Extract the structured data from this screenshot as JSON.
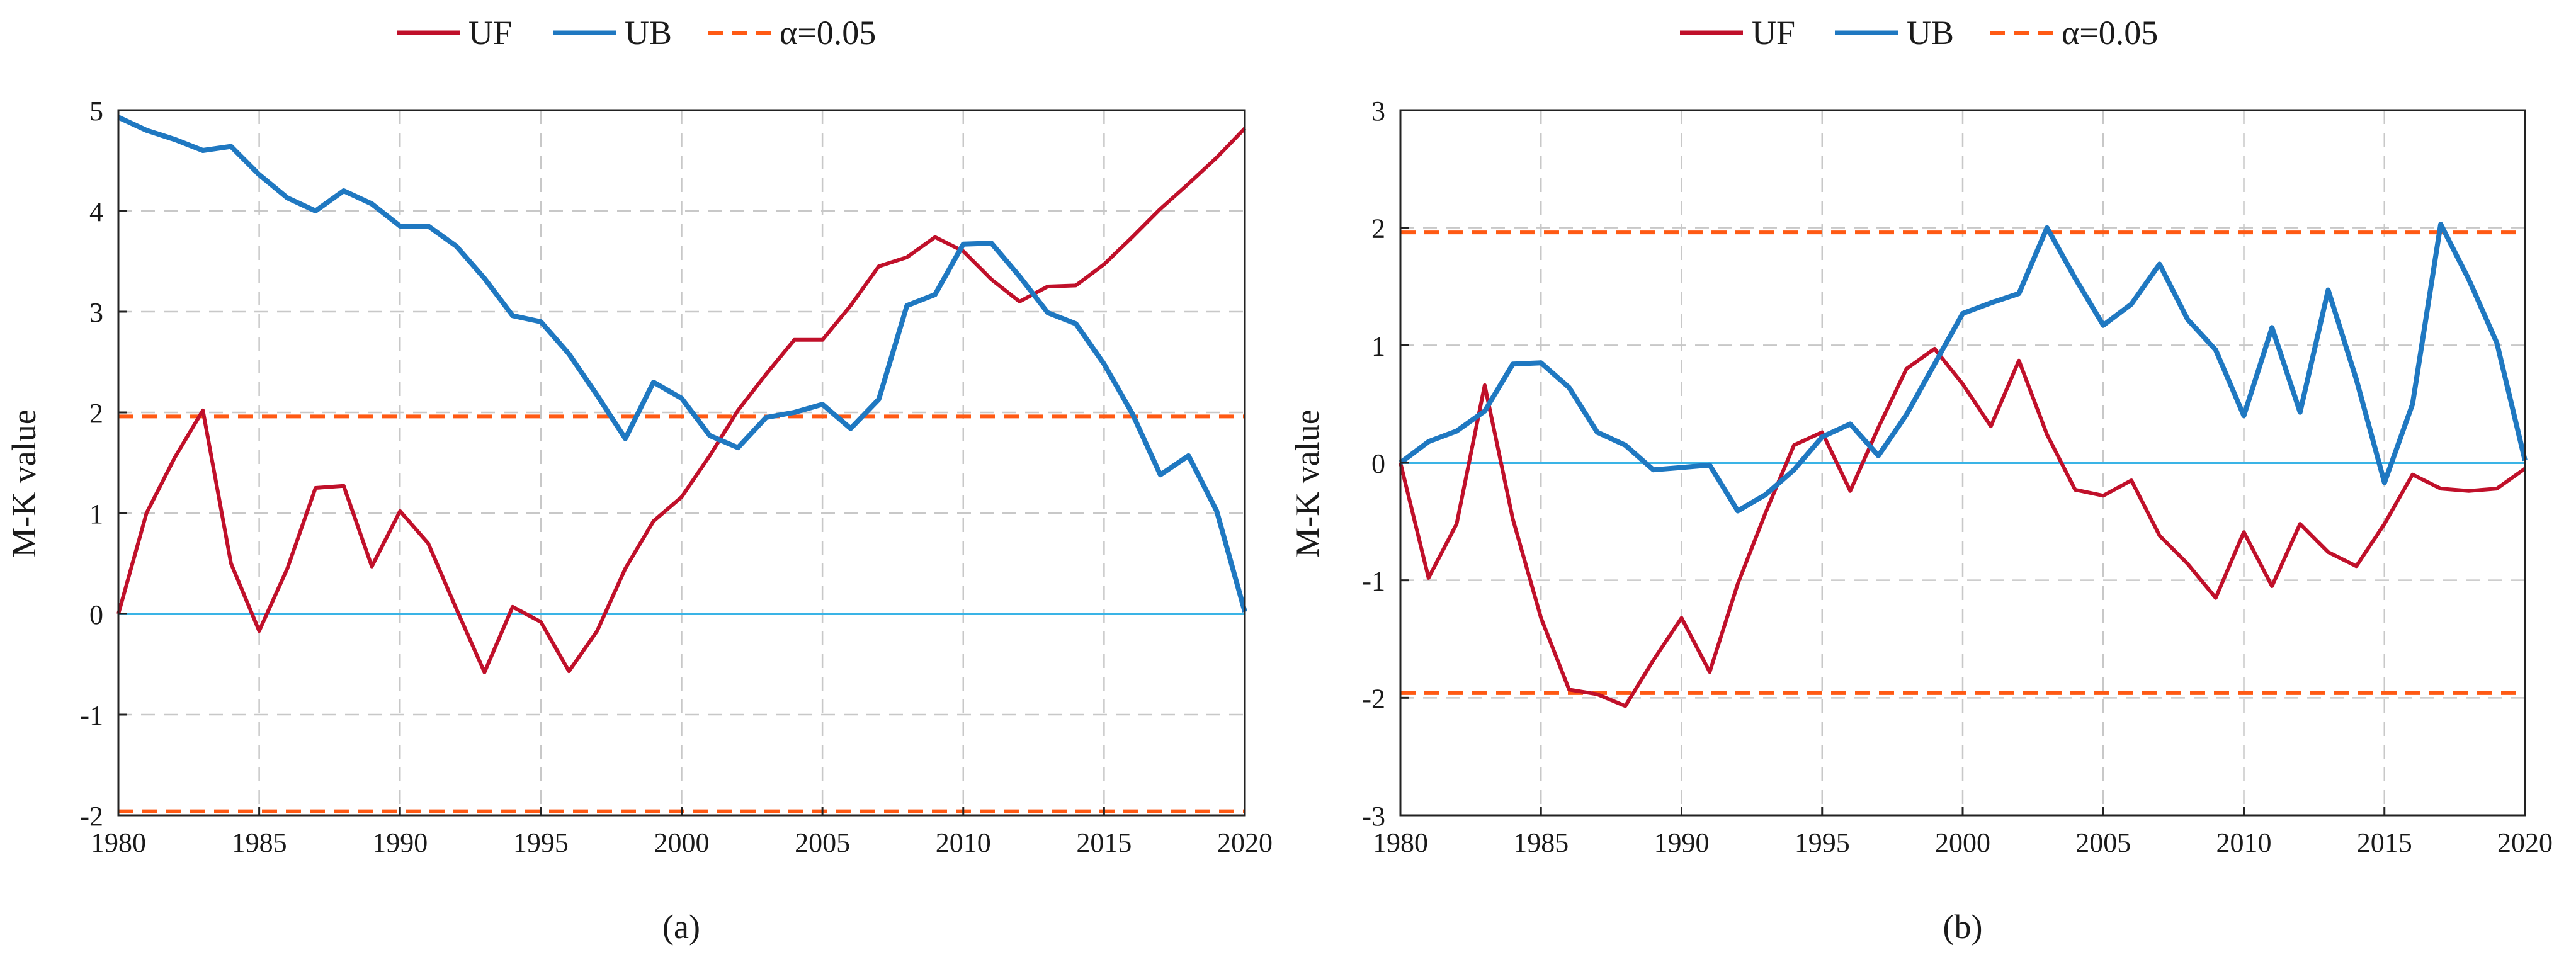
{
  "legend": {
    "uf": "UF",
    "ub": "UB",
    "alpha": "α=0.05"
  },
  "colors": {
    "uf": "#c0102a",
    "ub": "#1f78c1",
    "alpha": "#ff5a14",
    "zero": "#3ab4e6"
  },
  "chart_data": [
    {
      "type": "line",
      "caption": "(a)",
      "ylabel": "M-K value",
      "xlim": [
        1980,
        2020
      ],
      "ylim": [
        -2,
        5
      ],
      "xticks": [
        1980,
        1985,
        1990,
        1995,
        2000,
        2005,
        2010,
        2015,
        2020
      ],
      "yticks": [
        -2,
        -1,
        0,
        1,
        2,
        3,
        4,
        5
      ],
      "ytick_labels": [
        "-2",
        "-1",
        "0",
        "1",
        "2",
        "3",
        "4",
        "5"
      ],
      "x": [
        1980,
        1981,
        1982,
        1983,
        1984,
        1985,
        1986,
        1987,
        1988,
        1989,
        1990,
        1991,
        1992,
        1993,
        1994,
        1995,
        1996,
        1997,
        1998,
        1999,
        2000,
        2001,
        2002,
        2003,
        2004,
        2005,
        2006,
        2007,
        2008,
        2009,
        2010,
        2011,
        2012,
        2013,
        2014,
        2015,
        2016,
        2017,
        2018,
        2019,
        2020
      ],
      "series": [
        {
          "name": "UF",
          "values": [
            0,
            1.0,
            1.55,
            2.02,
            0.5,
            -0.17,
            0.45,
            1.25,
            1.27,
            0.47,
            1.02,
            0.7,
            0.05,
            -0.58,
            0.07,
            -0.08,
            -0.57,
            -0.17,
            0.45,
            0.92,
            1.16,
            1.57,
            2.02,
            2.38,
            2.72,
            2.72,
            3.06,
            3.45,
            3.54,
            3.74,
            3.6,
            3.32,
            3.1,
            3.25,
            3.26,
            3.47,
            3.74,
            4.02,
            4.27,
            4.53,
            4.82
          ]
        },
        {
          "name": "UB",
          "values": [
            4.93,
            4.8,
            4.71,
            4.6,
            4.64,
            4.36,
            4.13,
            4.0,
            4.2,
            4.07,
            3.85,
            3.85,
            3.65,
            3.33,
            2.96,
            2.9,
            2.58,
            2.17,
            1.74,
            2.3,
            2.14,
            1.77,
            1.65,
            1.95,
            2.0,
            2.08,
            1.84,
            2.13,
            3.06,
            3.17,
            3.67,
            3.68,
            3.35,
            2.99,
            2.88,
            2.48,
            1.99,
            1.38,
            1.57,
            1.02,
            0.02
          ]
        }
      ],
      "thresholds": [
        1.96,
        -1.96
      ],
      "zero_line": 0
    },
    {
      "type": "line",
      "caption": "(b)",
      "ylabel": "M-K value",
      "xlim": [
        1980,
        2020
      ],
      "ylim": [
        -3,
        3
      ],
      "xticks": [
        1980,
        1985,
        1990,
        1995,
        2000,
        2005,
        2010,
        2015,
        2020
      ],
      "yticks": [
        -3,
        -2,
        -1,
        0,
        1,
        2,
        3
      ],
      "ytick_labels": [
        "-3",
        "-2",
        "-1",
        "0",
        "1",
        "2",
        "3"
      ],
      "x": [
        1980,
        1981,
        1982,
        1983,
        1984,
        1985,
        1986,
        1987,
        1988,
        1989,
        1990,
        1991,
        1992,
        1993,
        1994,
        1995,
        1996,
        1997,
        1998,
        1999,
        2000,
        2001,
        2002,
        2003,
        2004,
        2005,
        2006,
        2007,
        2008,
        2009,
        2010,
        2011,
        2012,
        2013,
        2014,
        2015,
        2016,
        2017,
        2018,
        2019,
        2020
      ],
      "series": [
        {
          "name": "UF",
          "values": [
            0,
            -0.98,
            -0.52,
            0.66,
            -0.48,
            -1.32,
            -1.93,
            -1.97,
            -2.07,
            -1.68,
            -1.32,
            -1.78,
            -1.03,
            -0.42,
            0.15,
            0.26,
            -0.24,
            0.3,
            0.8,
            0.97,
            0.67,
            0.31,
            0.87,
            0.24,
            -0.23,
            -0.28,
            -0.15,
            -0.62,
            -0.86,
            -1.15,
            -0.59,
            -1.05,
            -0.52,
            -0.76,
            -0.88,
            -0.52,
            -0.1,
            -0.22,
            -0.24,
            -0.22,
            -0.05
          ]
        },
        {
          "name": "UB",
          "values": [
            0,
            0.18,
            0.27,
            0.44,
            0.84,
            0.85,
            0.64,
            0.26,
            0.15,
            -0.06,
            -0.04,
            -0.02,
            -0.41,
            -0.27,
            -0.06,
            0.22,
            0.33,
            0.06,
            0.41,
            0.84,
            1.27,
            1.36,
            1.44,
            2.0,
            1.57,
            1.17,
            1.35,
            1.69,
            1.22,
            0.96,
            0.4,
            1.15,
            0.43,
            1.47,
            0.71,
            -0.17,
            0.5,
            2.03,
            1.56,
            1.02,
            0.02
          ]
        }
      ],
      "thresholds": [
        1.96,
        -1.96
      ],
      "zero_line": 0
    }
  ]
}
